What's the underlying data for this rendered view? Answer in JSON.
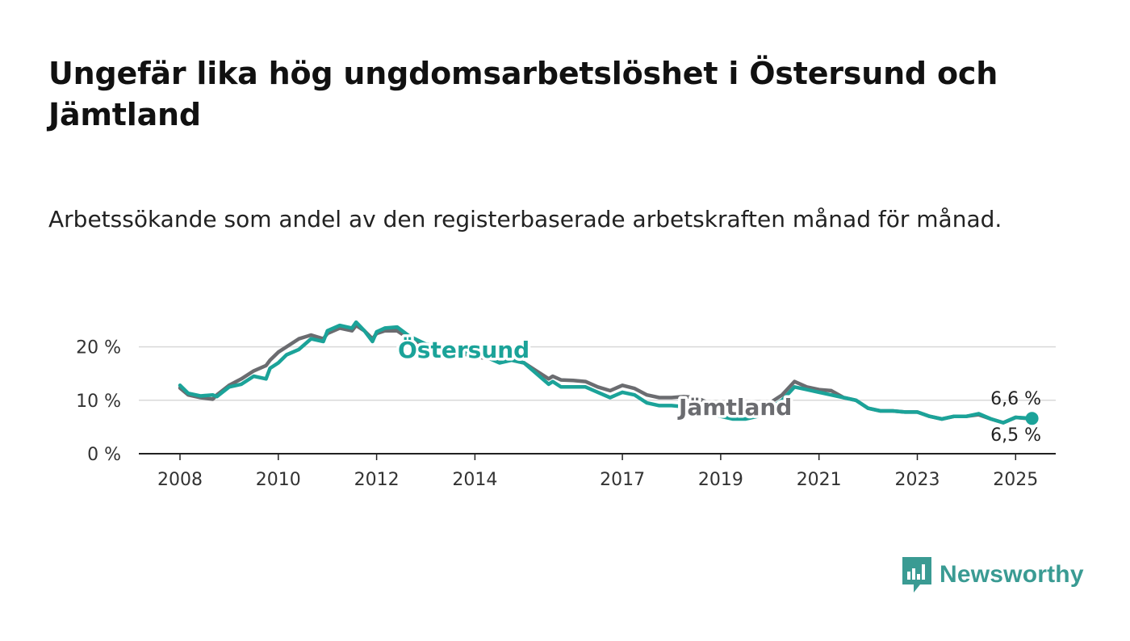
{
  "title": "Ungefär lika hög ungdomsarbetslöshet i Östersund och Jämtland",
  "subtitle": "Arbetssökande som andel av den registerbaserade arbetskraften månad för månad.",
  "colors": {
    "ostersund": "#1ba399",
    "jamtland": "#6b6c70",
    "grid": "#d9d9d9",
    "axis": "#222222",
    "brand": "#3a9b93"
  },
  "brand": {
    "name": "Newsworthy",
    "icon": "newsworthy-bar-chart-logo"
  },
  "chart_data": {
    "type": "line",
    "title": "Ungefär lika hög ungdomsarbetslöshet i Östersund och Jämtland",
    "subtitle": "Arbetssökande som andel av den registerbaserade arbetskraften månad för månad.",
    "xlabel": "",
    "ylabel": "",
    "x_ticks": [
      "2008",
      "2010",
      "2012",
      "2014",
      "2017",
      "2019",
      "2021",
      "2023",
      "2025"
    ],
    "y_ticks": [
      "0 %",
      "10 %",
      "20 %"
    ],
    "xlim": [
      "2007-06",
      "2025-09"
    ],
    "ylim": [
      0,
      25
    ],
    "grid": true,
    "annotations": {
      "ostersund_last": "6,6 %",
      "jamtland_last": "6,5 %"
    },
    "series": [
      {
        "name": "Östersund",
        "points": [
          [
            "2008-01",
            12.8
          ],
          [
            "2008-03",
            11.3
          ],
          [
            "2008-06",
            10.8
          ],
          [
            "2008-09",
            11.0
          ],
          [
            "2008-10",
            10.7
          ],
          [
            "2009-01",
            12.5
          ],
          [
            "2009-04",
            13.0
          ],
          [
            "2009-07",
            14.5
          ],
          [
            "2009-10",
            14.0
          ],
          [
            "2009-11",
            16.0
          ],
          [
            "2010-01",
            17.0
          ],
          [
            "2010-03",
            18.5
          ],
          [
            "2010-06",
            19.5
          ],
          [
            "2010-09",
            21.5
          ],
          [
            "2010-12",
            21.0
          ],
          [
            "2011-01",
            23.0
          ],
          [
            "2011-04",
            24.0
          ],
          [
            "2011-07",
            23.5
          ],
          [
            "2011-08",
            24.6
          ],
          [
            "2011-10",
            23.0
          ],
          [
            "2011-12",
            21.0
          ],
          [
            "2012-01",
            22.8
          ],
          [
            "2012-03",
            23.5
          ],
          [
            "2012-06",
            23.7
          ],
          [
            "2012-09",
            22.0
          ],
          [
            "2013-01",
            20.5
          ],
          [
            "2013-04",
            20.0
          ],
          [
            "2013-07",
            19.5
          ],
          [
            "2013-10",
            19.0
          ],
          [
            "2014-01",
            18.5
          ],
          [
            "2014-04",
            18.0
          ],
          [
            "2014-07",
            17.0
          ],
          [
            "2014-10",
            17.5
          ],
          [
            "2015-01",
            17.0
          ],
          [
            "2015-04",
            15.0
          ],
          [
            "2015-07",
            13.0
          ],
          [
            "2015-08",
            13.5
          ],
          [
            "2015-10",
            12.5
          ],
          [
            "2016-01",
            12.5
          ],
          [
            "2016-04",
            12.5
          ],
          [
            "2016-07",
            11.5
          ],
          [
            "2016-10",
            10.5
          ],
          [
            "2017-01",
            11.5
          ],
          [
            "2017-04",
            11.0
          ],
          [
            "2017-07",
            9.5
          ],
          [
            "2017-10",
            9.0
          ],
          [
            "2018-01",
            9.0
          ],
          [
            "2018-04",
            8.8
          ],
          [
            "2018-07",
            8.8
          ],
          [
            "2018-10",
            7.8
          ],
          [
            "2019-01",
            7.0
          ],
          [
            "2019-04",
            6.5
          ],
          [
            "2019-07",
            6.5
          ],
          [
            "2019-10",
            7.0
          ],
          [
            "2020-01",
            8.5
          ],
          [
            "2020-04",
            10.0
          ],
          [
            "2020-07",
            12.5
          ],
          [
            "2020-10",
            12.0
          ],
          [
            "2021-01",
            11.5
          ],
          [
            "2021-04",
            11.0
          ],
          [
            "2021-07",
            10.5
          ],
          [
            "2021-10",
            10.0
          ],
          [
            "2022-01",
            8.5
          ],
          [
            "2022-04",
            8.0
          ],
          [
            "2022-07",
            8.0
          ],
          [
            "2022-10",
            7.8
          ],
          [
            "2023-01",
            7.8
          ],
          [
            "2023-04",
            7.0
          ],
          [
            "2023-07",
            6.5
          ],
          [
            "2023-10",
            7.0
          ],
          [
            "2024-01",
            7.0
          ],
          [
            "2024-04",
            7.5
          ],
          [
            "2024-07",
            6.5
          ],
          [
            "2024-10",
            5.8
          ],
          [
            "2025-01",
            6.8
          ],
          [
            "2025-05",
            6.6
          ]
        ]
      },
      {
        "name": "Jämtland",
        "points": [
          [
            "2008-01",
            12.3
          ],
          [
            "2008-03",
            11.0
          ],
          [
            "2008-06",
            10.5
          ],
          [
            "2008-09",
            10.2
          ],
          [
            "2008-10",
            11.0
          ],
          [
            "2009-01",
            12.8
          ],
          [
            "2009-04",
            14.0
          ],
          [
            "2009-07",
            15.5
          ],
          [
            "2009-10",
            16.5
          ],
          [
            "2009-11",
            17.5
          ],
          [
            "2010-01",
            19.0
          ],
          [
            "2010-03",
            20.0
          ],
          [
            "2010-06",
            21.5
          ],
          [
            "2010-09",
            22.2
          ],
          [
            "2010-12",
            21.5
          ],
          [
            "2011-01",
            22.5
          ],
          [
            "2011-04",
            23.5
          ],
          [
            "2011-07",
            23.0
          ],
          [
            "2011-08",
            24.0
          ],
          [
            "2011-10",
            23.0
          ],
          [
            "2011-12",
            21.5
          ],
          [
            "2012-01",
            22.5
          ],
          [
            "2012-03",
            23.0
          ],
          [
            "2012-06",
            23.0
          ],
          [
            "2012-09",
            21.5
          ],
          [
            "2013-01",
            20.0
          ],
          [
            "2013-04",
            19.5
          ],
          [
            "2013-07",
            19.0
          ],
          [
            "2013-10",
            18.7
          ],
          [
            "2014-01",
            18.2
          ],
          [
            "2014-04",
            17.8
          ],
          [
            "2014-07",
            17.5
          ],
          [
            "2014-10",
            17.5
          ],
          [
            "2015-01",
            17.0
          ],
          [
            "2015-04",
            15.5
          ],
          [
            "2015-07",
            14.0
          ],
          [
            "2015-08",
            14.5
          ],
          [
            "2015-10",
            13.8
          ],
          [
            "2016-01",
            13.7
          ],
          [
            "2016-04",
            13.5
          ],
          [
            "2016-07",
            12.5
          ],
          [
            "2016-10",
            11.8
          ],
          [
            "2017-01",
            12.8
          ],
          [
            "2017-04",
            12.2
          ],
          [
            "2017-07",
            11.0
          ],
          [
            "2017-10",
            10.5
          ],
          [
            "2018-01",
            10.5
          ],
          [
            "2018-04",
            10.7
          ],
          [
            "2018-07",
            10.5
          ],
          [
            "2018-10",
            9.5
          ],
          [
            "2019-01",
            8.5
          ],
          [
            "2019-04",
            8.0
          ],
          [
            "2019-07",
            7.5
          ],
          [
            "2019-10",
            8.0
          ],
          [
            "2020-01",
            9.5
          ],
          [
            "2020-04",
            11.0
          ],
          [
            "2020-07",
            13.5
          ],
          [
            "2020-10",
            12.5
          ],
          [
            "2021-01",
            12.0
          ],
          [
            "2021-04",
            11.8
          ],
          [
            "2021-07",
            10.5
          ],
          [
            "2021-10",
            10.0
          ],
          [
            "2022-01",
            8.5
          ],
          [
            "2022-04",
            8.0
          ],
          [
            "2022-07",
            8.0
          ],
          [
            "2022-10",
            7.8
          ],
          [
            "2023-01",
            7.8
          ],
          [
            "2023-04",
            7.0
          ],
          [
            "2023-07",
            6.5
          ],
          [
            "2023-10",
            7.0
          ],
          [
            "2024-01",
            7.0
          ],
          [
            "2024-04",
            7.3
          ],
          [
            "2024-07",
            6.5
          ],
          [
            "2024-10",
            5.8
          ],
          [
            "2025-01",
            6.8
          ],
          [
            "2025-05",
            6.5
          ]
        ]
      }
    ]
  }
}
